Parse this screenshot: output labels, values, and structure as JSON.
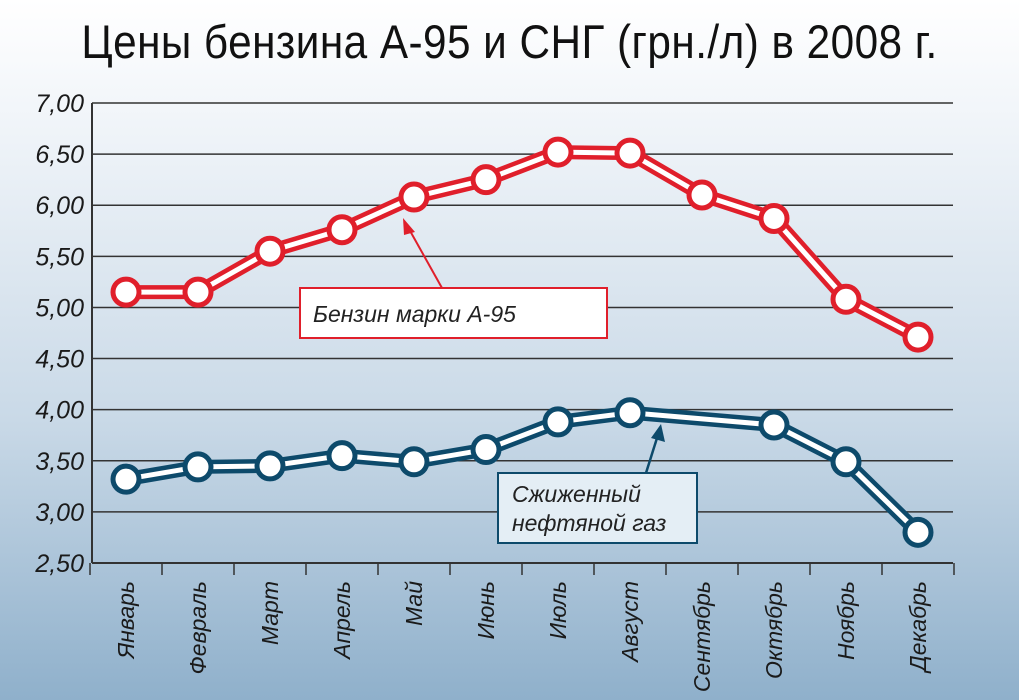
{
  "chart_data": {
    "type": "line",
    "title": "Цены бензина А-95 и СНГ (грн./л) в 2008 г.",
    "xlabel": "",
    "ylabel": "",
    "categories": [
      "Январь",
      "Февраль",
      "Март",
      "Апрель",
      "Май",
      "Июнь",
      "Июль",
      "Август",
      "Сентябрь",
      "Октябрь",
      "Ноябрь",
      "Декабрь"
    ],
    "ylim": [
      2.5,
      7.0
    ],
    "yticks": [
      "2,50",
      "3,00",
      "3,50",
      "4,00",
      "4,50",
      "5,00",
      "5,50",
      "6,00",
      "6,50",
      "7,00"
    ],
    "grid": true,
    "series": [
      {
        "name": "Бензин марки А-95",
        "color": "#e01f2b",
        "values": [
          5.15,
          5.15,
          5.55,
          5.76,
          6.08,
          6.25,
          6.52,
          6.51,
          6.1,
          5.87,
          5.08,
          4.71
        ]
      },
      {
        "name": "Сжиженный нефтяной газ",
        "name_lines": [
          "Сжиженный",
          "нефтяной газ"
        ],
        "color": "#0d4a6b",
        "values": [
          3.32,
          3.44,
          3.45,
          3.55,
          3.49,
          3.61,
          3.88,
          3.97,
          null,
          3.85,
          3.49,
          2.8
        ]
      }
    ]
  }
}
